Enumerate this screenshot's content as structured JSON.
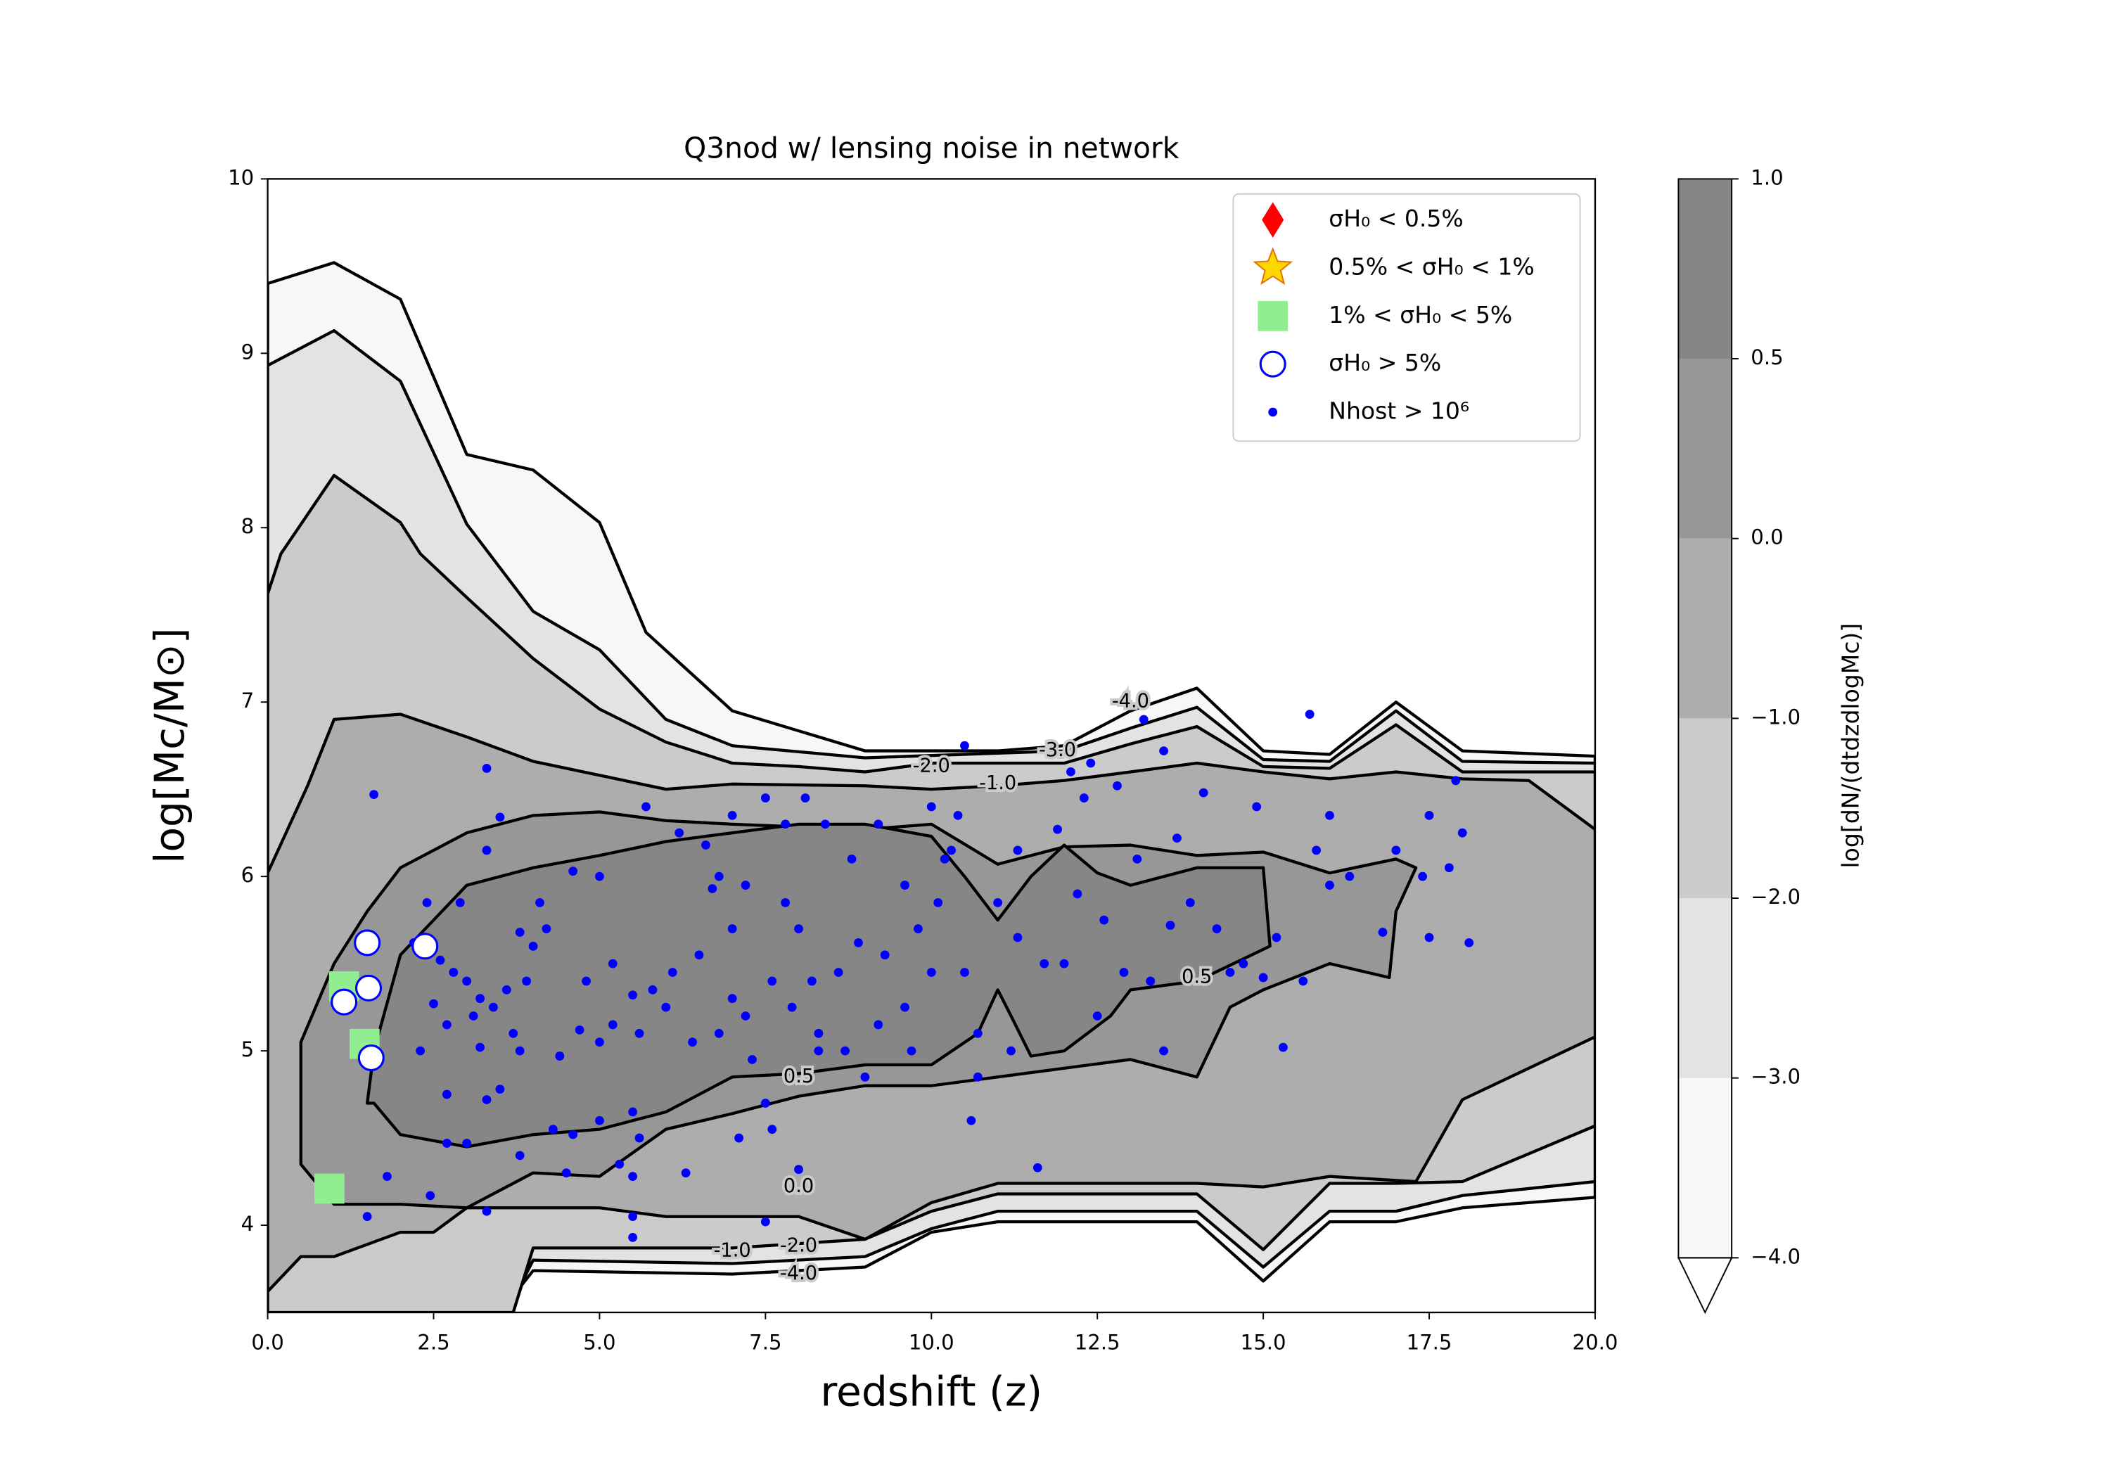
{
  "chart_data": {
    "type": "contour-scatter",
    "title": "Q3nod w/ lensing noise in network",
    "xlabel": "redshift (z)",
    "ylabel": "log[Mc/M⊙]",
    "xlim": [
      0,
      20
    ],
    "ylim": [
      3.5,
      10
    ],
    "xticks": [
      {
        "value": 0,
        "label": "0.0"
      },
      {
        "value": 2.5,
        "label": "2.5"
      },
      {
        "value": 5,
        "label": "5.0"
      },
      {
        "value": 7.5,
        "label": "7.5"
      },
      {
        "value": 10,
        "label": "10.0"
      },
      {
        "value": 12.5,
        "label": "12.5"
      },
      {
        "value": 15,
        "label": "15.0"
      },
      {
        "value": 17.5,
        "label": "17.5"
      },
      {
        "value": 20,
        "label": "20.0"
      }
    ],
    "yticks": [
      4,
      5,
      6,
      7,
      8,
      9,
      10
    ],
    "legend_position": "upper right",
    "colorbar": {
      "label": "log[dN/(dtdzdlogMc)]",
      "levels": [
        -4,
        -3,
        -2,
        -1,
        0,
        0.5,
        1
      ],
      "colors": [
        "#f7f7f7",
        "#e3e3e3",
        "#cbcbcb",
        "#adadad",
        "#979797",
        "#868686"
      ],
      "extend": "min",
      "ticks": [
        {
          "value": 1,
          "label": "1.0"
        },
        {
          "value": 0.5,
          "label": "0.5"
        },
        {
          "value": 0,
          "label": "0.0"
        },
        {
          "value": -1,
          "label": "−1.0"
        },
        {
          "value": -2,
          "label": "−2.0"
        },
        {
          "value": -3,
          "label": "−3.0"
        },
        {
          "value": -4,
          "label": "−4.0"
        }
      ]
    },
    "contours": [
      {
        "level": -4,
        "x": [
          0,
          1,
          2,
          3,
          4,
          5,
          5.7,
          7,
          9,
          10,
          11,
          12,
          13,
          14,
          15,
          16,
          17,
          18,
          20,
          20,
          18,
          17,
          16,
          15,
          14,
          11,
          10,
          9,
          7,
          4,
          3.5,
          0
        ],
        "y": [
          9.4,
          9.52,
          9.31,
          8.42,
          8.33,
          8.03,
          7.4,
          6.95,
          6.72,
          6.72,
          6.72,
          6.75,
          6.95,
          7.08,
          6.72,
          6.7,
          7.0,
          6.72,
          6.69,
          4.16,
          4.1,
          4.02,
          4.02,
          3.68,
          4.02,
          4.02,
          3.96,
          3.76,
          3.72,
          3.74,
          3.5,
          3.5
        ]
      },
      {
        "level": -3,
        "x": [
          0,
          1,
          2,
          3,
          4,
          5,
          6,
          7,
          9,
          12,
          13,
          14,
          15,
          16,
          17,
          18,
          20,
          20,
          18,
          17,
          16,
          15,
          14,
          11,
          10,
          9,
          7,
          4,
          3.6,
          0
        ],
        "y": [
          8.93,
          9.13,
          8.84,
          8.02,
          7.52,
          7.3,
          6.9,
          6.75,
          6.68,
          6.72,
          6.85,
          6.97,
          6.67,
          6.66,
          6.95,
          6.66,
          6.65,
          4.25,
          4.17,
          4.08,
          4.08,
          3.76,
          4.08,
          4.08,
          3.98,
          3.82,
          3.78,
          3.8,
          3.5,
          3.5
        ]
      },
      {
        "level": -2,
        "x": [
          0,
          0.2,
          1,
          2,
          2.3,
          3,
          4,
          5,
          6,
          7,
          8,
          9,
          10,
          11,
          12,
          13,
          14,
          15,
          16,
          17,
          18,
          20,
          20,
          18,
          17,
          16,
          15,
          14,
          11,
          10,
          9,
          7,
          4,
          3.7,
          0
        ],
        "y": [
          7.62,
          7.85,
          8.3,
          8.03,
          7.85,
          7.6,
          7.25,
          6.96,
          6.77,
          6.65,
          6.63,
          6.6,
          6.65,
          6.65,
          6.65,
          6.76,
          6.86,
          6.63,
          6.62,
          6.87,
          6.6,
          6.6,
          4.57,
          4.25,
          4.24,
          4.24,
          3.86,
          4.18,
          4.18,
          4.08,
          3.92,
          3.87,
          3.87,
          3.5,
          3.5
        ]
      },
      {
        "level": -1,
        "x": [
          0,
          0.6,
          1,
          2,
          3,
          4,
          6,
          7,
          9,
          10,
          11,
          12,
          13,
          14,
          15,
          16,
          17,
          18,
          19,
          20,
          20,
          18,
          17.3,
          16,
          15,
          14,
          11,
          10,
          9,
          8,
          6,
          5,
          3,
          2.5,
          2,
          1,
          0.5,
          0
        ],
        "y": [
          6.02,
          6.52,
          6.9,
          6.93,
          6.8,
          6.66,
          6.5,
          6.53,
          6.52,
          6.5,
          6.52,
          6.55,
          6.6,
          6.65,
          6.6,
          6.56,
          6.6,
          6.56,
          6.55,
          6.27,
          5.08,
          4.72,
          4.25,
          4.28,
          4.22,
          4.24,
          4.24,
          4.13,
          3.92,
          4.05,
          4.05,
          4.1,
          4.1,
          3.96,
          3.96,
          3.82,
          3.82,
          3.62
        ]
      },
      {
        "level": 0,
        "x": [
          0.5,
          0.5,
          1,
          1.5,
          2,
          3,
          4,
          5,
          6,
          7,
          9,
          10,
          11,
          12,
          13,
          14,
          15,
          16,
          17,
          17.3,
          17,
          16.9,
          16,
          15,
          14.5,
          14,
          13,
          11,
          10,
          9,
          8,
          7,
          6,
          5,
          4,
          3,
          2,
          1,
          0.5
        ],
        "y": [
          4.72,
          5.05,
          5.5,
          5.8,
          6.05,
          6.25,
          6.35,
          6.37,
          6.32,
          6.3,
          6.27,
          6.3,
          6.07,
          6.17,
          6.18,
          6.12,
          6.14,
          6.02,
          6.1,
          6.05,
          5.8,
          5.42,
          5.5,
          5.35,
          5.25,
          4.85,
          4.95,
          4.85,
          4.8,
          4.8,
          4.74,
          4.64,
          4.55,
          4.28,
          4.3,
          4.1,
          4.12,
          4.12,
          4.35
        ]
      },
      {
        "level": 0.5,
        "x": [
          1.5,
          1.6,
          2,
          3,
          4,
          5,
          6,
          7,
          8,
          9,
          10,
          10.5,
          11,
          11.5,
          12,
          12.5,
          13,
          14,
          15,
          15.1,
          14,
          13,
          12.7,
          12,
          11.5,
          11.2,
          11,
          10.7,
          10,
          9,
          8,
          7,
          6,
          5,
          4,
          3,
          2,
          1.6
        ],
        "y": [
          4.7,
          5.0,
          5.55,
          5.95,
          6.05,
          6.12,
          6.2,
          6.25,
          6.3,
          6.3,
          6.23,
          6.0,
          5.75,
          6.0,
          6.18,
          6.02,
          5.95,
          6.05,
          6.05,
          5.6,
          5.4,
          5.35,
          5.2,
          5.0,
          4.97,
          5.2,
          5.35,
          5.1,
          4.92,
          4.92,
          4.87,
          4.85,
          4.65,
          4.55,
          4.52,
          4.45,
          4.52,
          4.7
        ]
      }
    ],
    "contour_labels": [
      {
        "text": "-4.0",
        "x": 13.0,
        "y": 7.0
      },
      {
        "text": "-3.0",
        "x": 11.9,
        "y": 6.72
      },
      {
        "text": "-2.0",
        "x": 10.0,
        "y": 6.63
      },
      {
        "text": "-1.0",
        "x": 11.0,
        "y": 6.53
      },
      {
        "text": "0.5",
        "x": 14.0,
        "y": 5.42
      },
      {
        "text": "0.5",
        "x": 8.0,
        "y": 4.85
      },
      {
        "text": "0.0",
        "x": 8.0,
        "y": 4.22
      },
      {
        "text": "-1.0",
        "x": 7.0,
        "y": 3.85
      },
      {
        "text": "-2.0",
        "x": 8.0,
        "y": 3.88
      },
      {
        "text": "-4.0",
        "x": 8.0,
        "y": 3.72
      }
    ],
    "series": [
      {
        "name": "σH₀ < 0.5%",
        "marker": "diamond",
        "color": "#ff0000",
        "x": [],
        "y": []
      },
      {
        "name": "0.5% < σH₀ < 1%",
        "marker": "star",
        "color": "#ffd700",
        "x": [],
        "y": []
      },
      {
        "name": "1% < σH₀ < 5%",
        "marker": "square",
        "color": "#90ee90",
        "x": [
          1.15,
          1.46,
          0.93
        ],
        "y": [
          5.37,
          5.04,
          4.21
        ]
      },
      {
        "name": "σH₀ > 5%",
        "marker": "circle-open",
        "color": "#0000ff",
        "x": [
          1.5,
          1.15,
          1.52,
          1.56,
          2.37
        ],
        "y": [
          5.62,
          5.28,
          5.36,
          4.96,
          5.6
        ]
      },
      {
        "name": "Nhost > 10⁶",
        "marker": "dot",
        "color": "#0000ff",
        "x": [
          1.6,
          3.3,
          3.5,
          3.3,
          2.4,
          2.9,
          2.2,
          2.6,
          2.8,
          3.0,
          3.2,
          3.6,
          3.9,
          4.0,
          4.2,
          3.8,
          4.1,
          2.5,
          2.7,
          3.1,
          3.4,
          3.7,
          2.3,
          3.2,
          3.8,
          4.4,
          5.0,
          2.7,
          3.3,
          3.5,
          4.3,
          4.6,
          5.0,
          5.5,
          5.6,
          2.7,
          3.0,
          3.8,
          4.5,
          5.3,
          5.5,
          6.3,
          5.5,
          5.5,
          3.3,
          2.45,
          1.8,
          1.5,
          4.6,
          5.0,
          5.7,
          6.2,
          6.6,
          6.8,
          6.7,
          7.0,
          7.5,
          7.8,
          8.1,
          8.4,
          8.8,
          9.2,
          10.0,
          10.4,
          10.5,
          10.3,
          9.6,
          10.1,
          9.8,
          9.3,
          8.9,
          8.6,
          8.2,
          8.0,
          7.8,
          7.2,
          7.0,
          6.5,
          6.1,
          5.8,
          5.5,
          5.2,
          4.8,
          4.7,
          5.2,
          5.6,
          6.0,
          6.4,
          6.8,
          7.2,
          7.6,
          7.9,
          8.3,
          8.7,
          9.2,
          9.6,
          10.0,
          10.5,
          11.0,
          11.3,
          11.7,
          12.2,
          12.6,
          12.9,
          13.3,
          13.6,
          13.9,
          14.3,
          14.7,
          15.0,
          15.2,
          15.6,
          16.0,
          15.8,
          16.3,
          16.8,
          17.0,
          17.5,
          17.4,
          17.8,
          18.1,
          18.0,
          17.9,
          17.5,
          15.7,
          16.0,
          14.9,
          14.1,
          13.7,
          13.1,
          12.8,
          12.3,
          12.4,
          12.1,
          13.2,
          13.5,
          11.9,
          10.2,
          9.7,
          9.0,
          8.3,
          7.3,
          7.0,
          7.5,
          7.1,
          7.6,
          8.0,
          7.5,
          10.6,
          10.7,
          10.7,
          11.2,
          11.6,
          12.0,
          11.3,
          13.5,
          14.5,
          15.3,
          12.5
        ],
        "y": [
          6.47,
          6.62,
          6.34,
          6.15,
          5.85,
          5.85,
          5.62,
          5.52,
          5.45,
          5.4,
          5.3,
          5.35,
          5.4,
          5.6,
          5.7,
          5.68,
          5.85,
          5.27,
          5.15,
          5.2,
          5.25,
          5.1,
          5.0,
          5.02,
          5.0,
          4.97,
          5.05,
          4.75,
          4.72,
          4.78,
          4.55,
          4.52,
          4.6,
          4.65,
          4.5,
          4.47,
          4.47,
          4.4,
          4.3,
          4.35,
          4.28,
          4.3,
          4.05,
          3.93,
          4.08,
          4.17,
          4.28,
          4.05,
          6.03,
          6.0,
          6.4,
          6.25,
          6.18,
          6.0,
          5.93,
          6.35,
          6.45,
          6.3,
          6.45,
          6.3,
          6.1,
          6.3,
          6.4,
          6.35,
          6.75,
          6.15,
          5.95,
          5.85,
          5.7,
          5.55,
          5.62,
          5.45,
          5.4,
          5.7,
          5.85,
          5.95,
          5.7,
          5.55,
          5.45,
          5.35,
          5.32,
          5.5,
          5.4,
          5.12,
          5.15,
          5.1,
          5.25,
          5.05,
          5.1,
          5.2,
          5.4,
          5.25,
          5.1,
          5.0,
          5.15,
          5.25,
          5.45,
          5.45,
          5.85,
          5.65,
          5.5,
          5.9,
          5.75,
          5.45,
          5.4,
          5.72,
          5.85,
          5.7,
          5.5,
          5.42,
          5.65,
          5.4,
          5.95,
          6.15,
          6.0,
          5.68,
          6.15,
          5.65,
          6.0,
          6.05,
          5.62,
          6.25,
          6.55,
          6.35,
          6.93,
          6.35,
          6.4,
          6.48,
          6.22,
          6.1,
          6.52,
          6.45,
          6.65,
          6.6,
          6.9,
          6.72,
          6.27,
          6.1,
          5.0,
          4.85,
          5.0,
          4.95,
          5.3,
          4.7,
          4.5,
          4.55,
          4.32,
          4.02,
          4.6,
          4.85,
          5.1,
          5.0,
          4.33,
          5.5,
          6.15,
          5.0,
          5.45,
          5.02,
          5.2
        ]
      }
    ]
  }
}
